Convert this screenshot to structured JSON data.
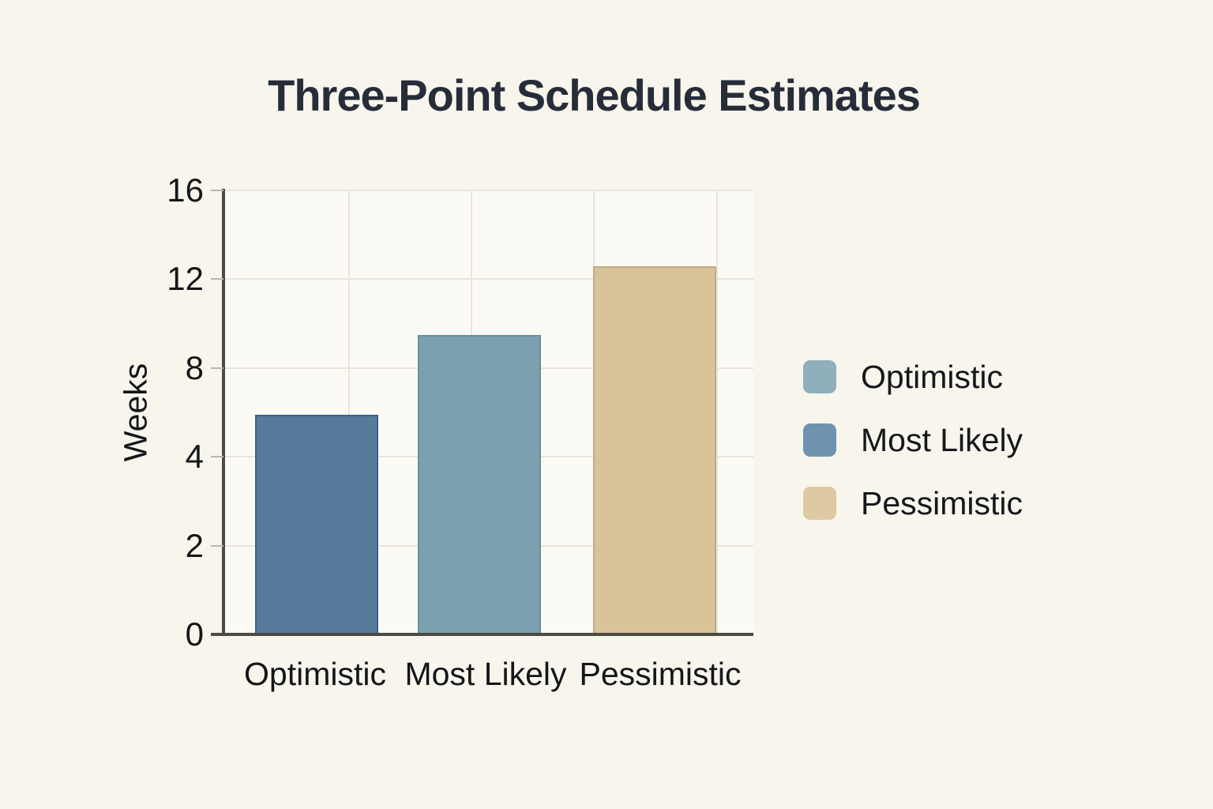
{
  "chart_data": {
    "type": "bar",
    "title": "Three-Point Schedule Estimates",
    "xlabel": "",
    "ylabel": "Weeks",
    "categories": [
      "Optimistic",
      "Most Likely",
      "Pessimistic"
    ],
    "values": [
      5.9,
      9.5,
      12.6
    ],
    "y_ticks": [
      0,
      2,
      4,
      8,
      12,
      16
    ],
    "ylim": [
      0,
      16
    ],
    "scale_note": "y tick marks 0,2,4,8,12,16 are rendered equally spaced (non-linear scale)",
    "grid": "light horizontal and vertical gridlines inside plot",
    "legend_position": "right of plot",
    "legend": [
      {
        "label": "Optimistic",
        "color": "#8eafbb"
      },
      {
        "label": "Most Likely",
        "color": "#6d93b1"
      },
      {
        "label": "Pessimistic",
        "color": "#ddc9a2"
      }
    ],
    "bar_colors": [
      "#56799c",
      "#7ca1ae",
      "#d8c39a"
    ],
    "bar_border_colors": [
      "#3f618a",
      "#65909f",
      "#c2ad83"
    ]
  },
  "colors": {
    "background": "#f8f5ec",
    "plot_background": "#fbfaf4",
    "gridline": "#e7e5dc",
    "axis": "#4b4a45",
    "tick_mark": "#b9b6ad",
    "text": "#141619",
    "title": "#262d39"
  }
}
